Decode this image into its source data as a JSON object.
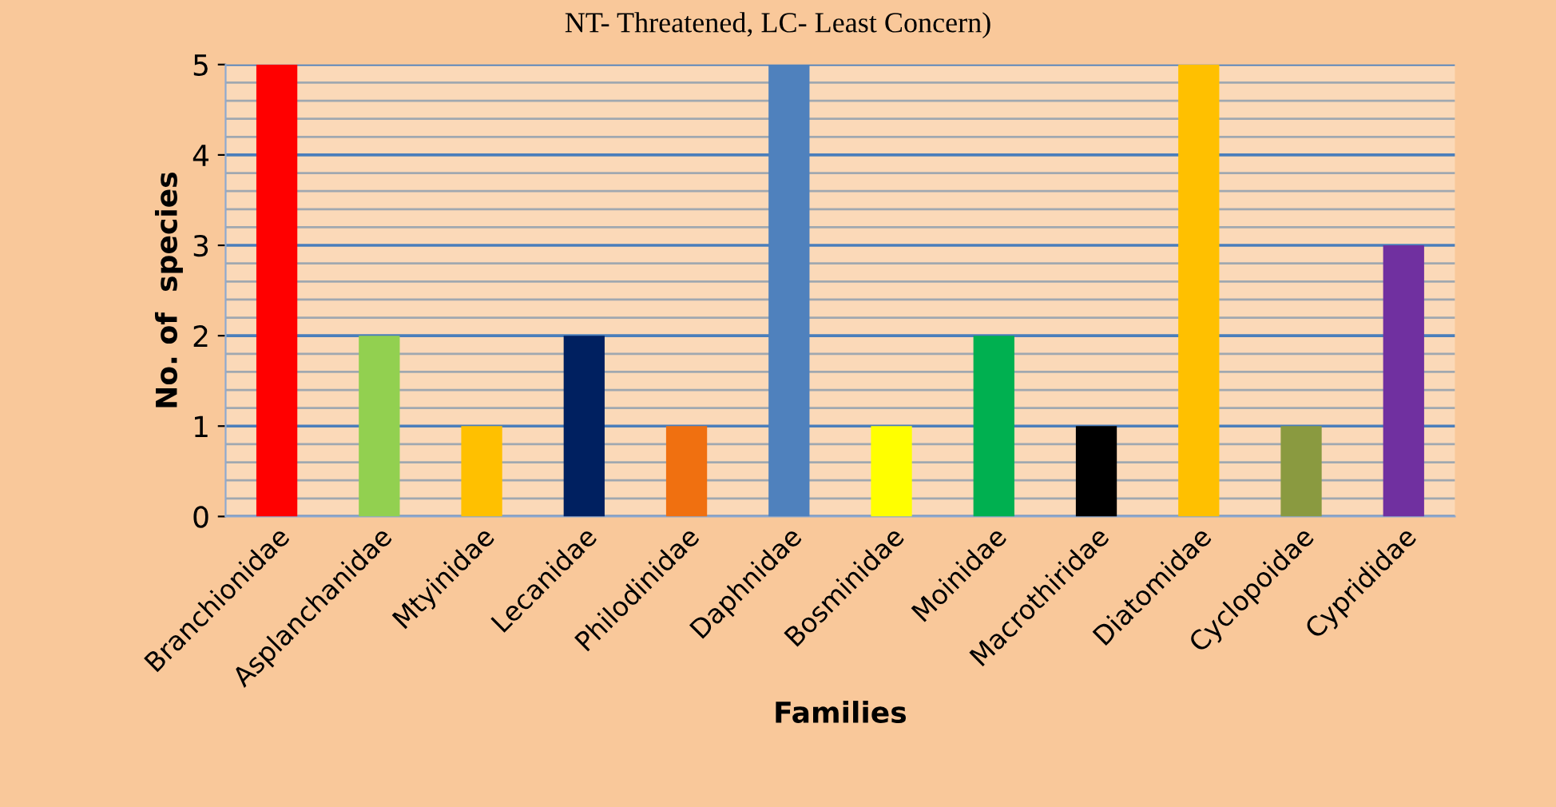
{
  "chart_data": {
    "type": "bar",
    "title": "NT- Threatened, LC- Least Concern)",
    "xlabel": "Families",
    "ylabel": "No. of  species",
    "categories": [
      "Branchionidae",
      "Asplanchanidae",
      "Mtyinidae",
      "Lecanidae",
      "Philodinidae",
      "Daphnidae",
      "Bosminidae",
      "Moinidae",
      "Macrothiridae",
      "Diatomidae",
      "Cyclopoidae",
      "Cyprididae"
    ],
    "values": [
      5,
      2,
      1,
      2,
      1,
      5,
      1,
      2,
      1,
      5,
      1,
      3
    ],
    "colors": [
      "#ff0000",
      "#92d050",
      "#ffc000",
      "#002060",
      "#f07010",
      "#4f81bd",
      "#ffff00",
      "#00b050",
      "#000000",
      "#ffc000",
      "#8a9a40",
      "#7030a0"
    ],
    "ylim": [
      0,
      5
    ],
    "yticks": [
      0,
      1,
      2,
      3,
      4,
      5
    ],
    "grid": "y"
  }
}
